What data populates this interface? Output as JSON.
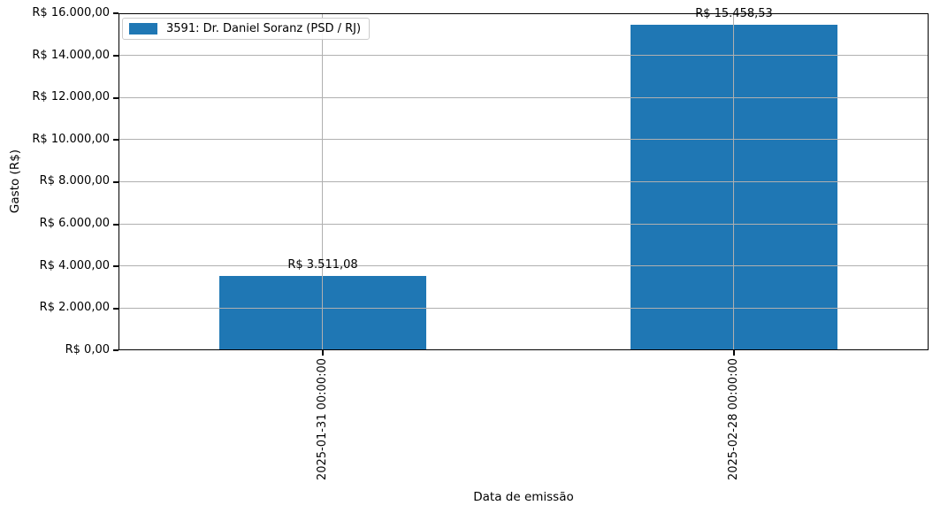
{
  "chart_data": {
    "type": "bar",
    "title": "",
    "xlabel": "Data de emissão",
    "ylabel": "Gasto (R$)",
    "categories": [
      "2025-01-31 00:00:00",
      "2025-02-28 00:00:00"
    ],
    "series": [
      {
        "name": "3591: Dr. Daniel Soranz (PSD / RJ)",
        "values": [
          3511.08,
          15458.53
        ]
      }
    ],
    "bar_value_labels": [
      "R$ 3.511,08",
      "R$ 15.458,53"
    ],
    "ylim": [
      0,
      16000
    ],
    "ytick_step": 2000,
    "ytick_labels": [
      "R$ 16.000,00",
      "R$ 14.000,00",
      "R$ 12.000,00",
      "R$ 10.000,00",
      "R$ 8.000,00",
      "R$ 6.000,00",
      "R$ 4.000,00",
      "R$ 2.000,00",
      "R$ 0,00"
    ],
    "grid": true,
    "legend_position": "upper left",
    "colors": {
      "bar": "#1f77b4",
      "grid": "#b0b0b0",
      "spine": "#000000",
      "background": "#ffffff"
    }
  }
}
